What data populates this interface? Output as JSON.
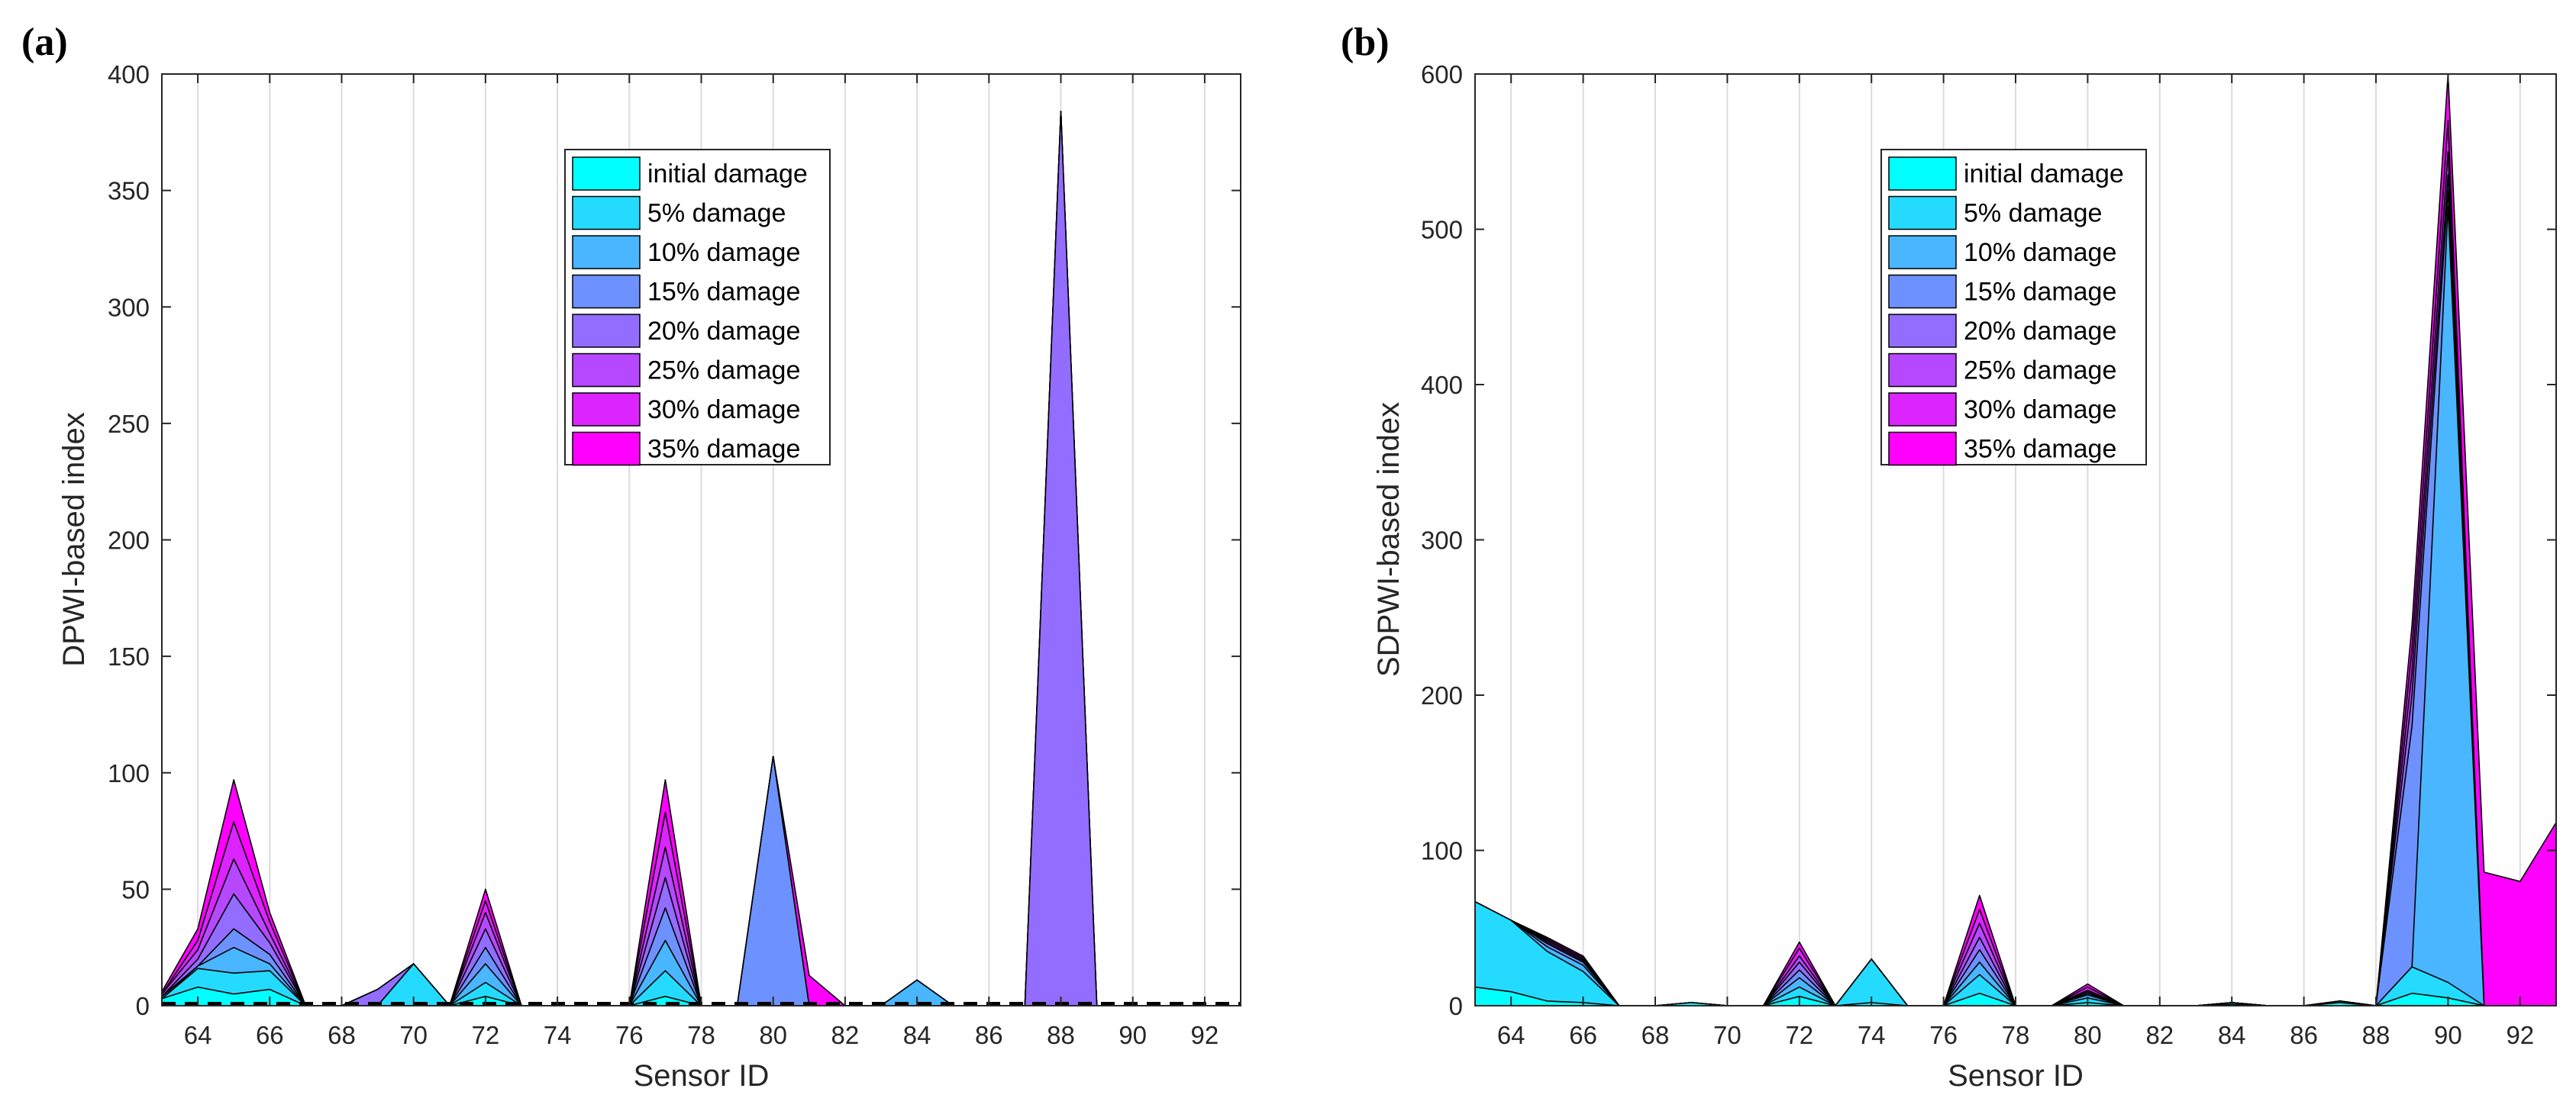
{
  "chart_data": [
    {
      "type": "area",
      "panel_label": "(a)",
      "xlabel": "Sensor ID",
      "ylabel": "DPWI-based index",
      "xlim": [
        63,
        93
      ],
      "ylim": [
        0,
        400
      ],
      "xticks": [
        64,
        66,
        68,
        70,
        72,
        74,
        76,
        78,
        80,
        82,
        84,
        86,
        88,
        90,
        92
      ],
      "yticks": [
        0,
        50,
        100,
        150,
        200,
        250,
        300,
        350,
        400
      ],
      "grid": "vertical",
      "legend_position": "top-center",
      "x": [
        63,
        64,
        65,
        66,
        67,
        68,
        69,
        70,
        71,
        72,
        73,
        74,
        75,
        76,
        77,
        78,
        79,
        80,
        81,
        82,
        83,
        84,
        85,
        86,
        87,
        88,
        89,
        90,
        91,
        92,
        93
      ],
      "series": [
        {
          "name": "initial damage",
          "color": "#00FFFF",
          "values": [
            3,
            8,
            5,
            7,
            0,
            0,
            0,
            0,
            0,
            4,
            0,
            0,
            0,
            0,
            4,
            0,
            0,
            0,
            0,
            0,
            0,
            0,
            0,
            0,
            0,
            0,
            0,
            0,
            0,
            0,
            0
          ]
        },
        {
          "name": "5% damage",
          "color": "#24DBFF",
          "values": [
            3,
            16,
            14,
            15,
            0,
            0,
            0,
            18,
            0,
            10,
            0,
            0,
            0,
            0,
            15,
            0,
            0,
            0,
            0,
            0,
            0,
            0,
            0,
            0,
            0,
            0,
            0,
            0,
            0,
            0,
            0
          ]
        },
        {
          "name": "10% damage",
          "color": "#49B6FF",
          "values": [
            3,
            17,
            25,
            18,
            0,
            0,
            0,
            18,
            0,
            18,
            0,
            0,
            0,
            0,
            28,
            0,
            0,
            0,
            0,
            0,
            0,
            11,
            0,
            0,
            0,
            0,
            0,
            0,
            0,
            0,
            0
          ]
        },
        {
          "name": "15% damage",
          "color": "#6D92FF",
          "values": [
            4,
            17,
            33,
            22,
            0,
            0,
            0,
            18,
            0,
            25,
            0,
            0,
            0,
            0,
            42,
            0,
            0,
            107,
            0,
            0,
            0,
            11,
            0,
            0,
            0,
            0,
            0,
            0,
            0,
            0,
            0
          ]
        },
        {
          "name": "20% damage",
          "color": "#926DFF",
          "values": [
            4,
            20,
            48,
            27,
            0,
            0,
            7,
            18,
            0,
            33,
            0,
            0,
            0,
            0,
            55,
            0,
            0,
            107,
            0,
            0,
            0,
            11,
            0,
            0,
            0,
            384,
            0,
            0,
            0,
            0,
            0
          ]
        },
        {
          "name": "25% damage",
          "color": "#B649FF",
          "values": [
            5,
            24,
            63,
            31,
            0,
            0,
            7,
            18,
            0,
            40,
            0,
            0,
            0,
            0,
            68,
            0,
            0,
            107,
            0,
            0,
            0,
            11,
            0,
            0,
            0,
            384,
            0,
            0,
            0,
            0,
            0
          ]
        },
        {
          "name": "30% damage",
          "color": "#DB24FF",
          "values": [
            5,
            28,
            79,
            36,
            0,
            0,
            7,
            18,
            0,
            45,
            0,
            0,
            0,
            0,
            83,
            0,
            0,
            107,
            0,
            0,
            0,
            11,
            0,
            0,
            0,
            384,
            0,
            0,
            0,
            0,
            0
          ]
        },
        {
          "name": "35% damage",
          "color": "#FF00FF",
          "values": [
            6,
            33,
            97,
            40,
            0,
            0,
            7,
            18,
            0,
            50,
            0,
            0,
            0,
            0,
            97,
            0,
            0,
            107,
            13,
            0,
            0,
            11,
            0,
            0,
            0,
            384,
            0,
            0,
            0,
            0,
            0
          ]
        }
      ],
      "threshold": {
        "value": 1,
        "style": "dashed",
        "color": "#000000"
      }
    },
    {
      "type": "area",
      "panel_label": "(b)",
      "xlabel": "Sensor ID",
      "ylabel": "SDPWI-based index",
      "xlim": [
        63,
        93
      ],
      "ylim": [
        0,
        600
      ],
      "xticks": [
        64,
        66,
        68,
        70,
        72,
        74,
        76,
        78,
        80,
        82,
        84,
        86,
        88,
        90,
        92
      ],
      "yticks": [
        0,
        100,
        200,
        300,
        400,
        500,
        600
      ],
      "grid": "vertical",
      "legend_position": "top-center",
      "x": [
        63,
        64,
        65,
        66,
        67,
        68,
        69,
        70,
        71,
        72,
        73,
        74,
        75,
        76,
        77,
        78,
        79,
        80,
        81,
        82,
        83,
        84,
        85,
        86,
        87,
        88,
        89,
        90,
        91,
        92,
        93
      ],
      "series": [
        {
          "name": "initial damage",
          "color": "#00FFFF",
          "values": [
            12,
            9,
            3,
            2,
            0,
            0,
            2,
            0,
            0,
            6,
            0,
            2,
            0,
            0,
            8,
            0,
            0,
            2,
            0,
            0,
            0,
            1,
            0,
            0,
            2,
            0,
            8,
            5,
            0,
            0,
            0
          ]
        },
        {
          "name": "5% damage",
          "color": "#24DBFF",
          "values": [
            67,
            55,
            35,
            22,
            0,
            0,
            2,
            0,
            0,
            12,
            0,
            30,
            0,
            0,
            20,
            0,
            0,
            5,
            0,
            0,
            0,
            2,
            0,
            0,
            3,
            0,
            25,
            15,
            0,
            0,
            0
          ]
        },
        {
          "name": "10% damage",
          "color": "#49B6FF",
          "values": [
            67,
            55,
            38,
            26,
            0,
            0,
            2,
            0,
            0,
            18,
            0,
            30,
            0,
            0,
            28,
            0,
            0,
            7,
            0,
            0,
            0,
            2,
            0,
            0,
            3,
            0,
            25,
            515,
            0,
            0,
            0
          ]
        },
        {
          "name": "15% damage",
          "color": "#6D92FF",
          "values": [
            67,
            55,
            40,
            28,
            0,
            0,
            2,
            0,
            0,
            23,
            0,
            30,
            0,
            0,
            36,
            0,
            0,
            8,
            0,
            0,
            0,
            2,
            0,
            0,
            3,
            0,
            180,
            525,
            0,
            0,
            0
          ]
        },
        {
          "name": "20% damage",
          "color": "#926DFF",
          "values": [
            67,
            55,
            41,
            29,
            0,
            0,
            2,
            0,
            0,
            28,
            0,
            30,
            0,
            0,
            44,
            0,
            0,
            9,
            0,
            0,
            0,
            2,
            0,
            0,
            3,
            0,
            200,
            535,
            0,
            0,
            0
          ]
        },
        {
          "name": "25% damage",
          "color": "#B649FF",
          "values": [
            67,
            55,
            42,
            30,
            0,
            0,
            2,
            0,
            0,
            32,
            0,
            30,
            0,
            0,
            53,
            0,
            0,
            10,
            0,
            0,
            0,
            2,
            0,
            0,
            3,
            0,
            215,
            550,
            0,
            0,
            0
          ]
        },
        {
          "name": "30% damage",
          "color": "#DB24FF",
          "values": [
            67,
            55,
            43,
            31,
            0,
            0,
            2,
            0,
            0,
            37,
            0,
            30,
            0,
            0,
            62,
            0,
            0,
            12,
            0,
            0,
            0,
            2,
            0,
            0,
            3,
            0,
            230,
            570,
            0,
            0,
            0
          ]
        },
        {
          "name": "35% damage",
          "color": "#FF00FF",
          "values": [
            67,
            55,
            44,
            32,
            0,
            0,
            2,
            0,
            0,
            41,
            0,
            30,
            0,
            0,
            71,
            0,
            0,
            14,
            0,
            0,
            0,
            2,
            0,
            0,
            3,
            0,
            245,
            600,
            86,
            80,
            118
          ]
        }
      ]
    }
  ]
}
